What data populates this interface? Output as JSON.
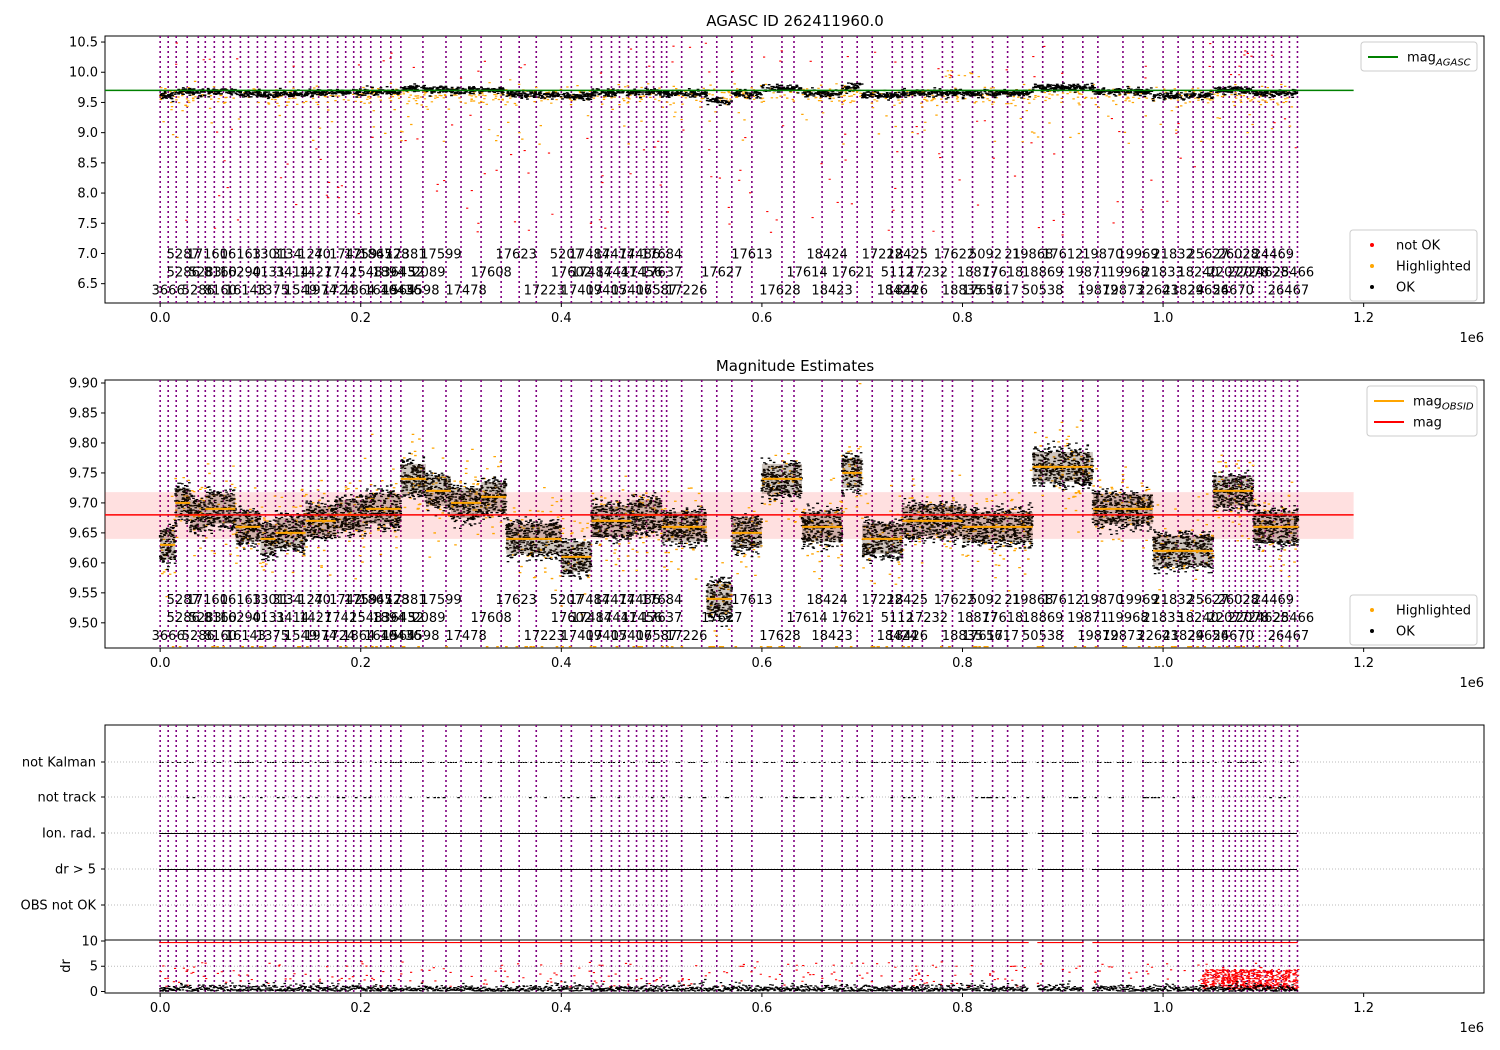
{
  "chart_data": [
    {
      "type": "scatter",
      "title": "AGASC ID 262411960.0",
      "xlim": [
        -55000,
        1320000
      ],
      "ylim": [
        6.18,
        10.6
      ],
      "x_ticks": [
        0,
        200000,
        400000,
        600000,
        800000,
        1000000,
        1200000
      ],
      "x_tick_labels": [
        "0.0",
        "0.2",
        "0.4",
        "0.6",
        "0.8",
        "1.0",
        "1.2"
      ],
      "x_offset_label": "1e6",
      "y_ticks": [
        6.5,
        7.0,
        7.5,
        8.0,
        8.5,
        9.0,
        9.5,
        10.0,
        10.5
      ],
      "y_tick_labels": [
        "6.5",
        "7.0",
        "7.5",
        "8.0",
        "8.5",
        "9.0",
        "9.5",
        "10.0",
        "10.5"
      ],
      "grid": false,
      "hlines": [
        {
          "name": "mag_AGASC",
          "value": 9.7,
          "color": "#008000",
          "x_range": [
            -55000,
            1190000
          ]
        }
      ],
      "legend_top": {
        "placement": "top-right",
        "entries": [
          {
            "label": "mag",
            "sub": "AGASC",
            "color": "#008000",
            "kind": "line"
          }
        ]
      },
      "legend_bottom": {
        "placement": "bottom-right",
        "entries": [
          {
            "label": "not OK",
            "color": "#ff0000",
            "kind": "dot"
          },
          {
            "label": "Highlighted",
            "color": "#ffa500",
            "kind": "dot"
          },
          {
            "label": "OK",
            "color": "#000000",
            "kind": "dot"
          }
        ]
      },
      "obsid_label_rows_y": [
        7.0,
        6.7,
        6.4
      ],
      "series": [
        {
          "name": "OK",
          "color": "#000000",
          "level": 9.68,
          "spread": 0.05
        },
        {
          "name": "Highlighted",
          "color": "#ffa500",
          "level": 9.6,
          "spread": 0.3
        },
        {
          "name": "not OK",
          "color": "#ff0000",
          "level": 9.4,
          "spread": 0.9
        }
      ]
    },
    {
      "type": "scatter",
      "title": "Magnitude Estimates",
      "xlim": [
        -55000,
        1320000
      ],
      "ylim": [
        9.458,
        9.905
      ],
      "x_ticks": [
        0,
        200000,
        400000,
        600000,
        800000,
        1000000,
        1200000
      ],
      "x_tick_labels": [
        "0.0",
        "0.2",
        "0.4",
        "0.6",
        "0.8",
        "1.0",
        "1.2"
      ],
      "x_offset_label": "1e6",
      "y_ticks": [
        9.5,
        9.55,
        9.6,
        9.65,
        9.7,
        9.75,
        9.8,
        9.85,
        9.9
      ],
      "y_tick_labels": [
        "9.50",
        "9.55",
        "9.60",
        "9.65",
        "9.70",
        "9.75",
        "9.80",
        "9.85",
        "9.90"
      ],
      "grid": false,
      "mag": {
        "value": 9.68,
        "band": [
          9.64,
          9.718
        ],
        "color": "#ff0000",
        "x_range": [
          -55000,
          1190000
        ]
      },
      "legend_top": {
        "placement": "top-right",
        "entries": [
          {
            "label": "mag",
            "sub": "OBSID",
            "color": "#ffa500",
            "kind": "line"
          },
          {
            "label": "mag",
            "sub": "",
            "color": "#ff0000",
            "kind": "line"
          }
        ]
      },
      "legend_bottom": {
        "placement": "bottom-right",
        "entries": [
          {
            "label": "Highlighted",
            "color": "#ffa500",
            "kind": "dot"
          },
          {
            "label": "OK",
            "color": "#000000",
            "kind": "dot"
          }
        ]
      },
      "obsid_label_rows_y": [
        9.54,
        9.51,
        9.48
      ],
      "mag_obsid_segments": [
        {
          "x0": 0,
          "x1": 15000,
          "value": 9.63
        },
        {
          "x0": 15000,
          "x1": 30000,
          "value": 9.7
        },
        {
          "x0": 30000,
          "x1": 45000,
          "value": 9.68
        },
        {
          "x0": 45000,
          "x1": 75000,
          "value": 9.69
        },
        {
          "x0": 75000,
          "x1": 100000,
          "value": 9.66
        },
        {
          "x0": 100000,
          "x1": 115000,
          "value": 9.64
        },
        {
          "x0": 115000,
          "x1": 145000,
          "value": 9.65
        },
        {
          "x0": 145000,
          "x1": 175000,
          "value": 9.67
        },
        {
          "x0": 175000,
          "x1": 205000,
          "value": 9.68
        },
        {
          "x0": 205000,
          "x1": 240000,
          "value": 9.69
        },
        {
          "x0": 240000,
          "x1": 265000,
          "value": 9.74
        },
        {
          "x0": 265000,
          "x1": 290000,
          "value": 9.72
        },
        {
          "x0": 290000,
          "x1": 320000,
          "value": 9.7
        },
        {
          "x0": 320000,
          "x1": 345000,
          "value": 9.71
        },
        {
          "x0": 345000,
          "x1": 400000,
          "value": 9.64
        },
        {
          "x0": 400000,
          "x1": 430000,
          "value": 9.61
        },
        {
          "x0": 430000,
          "x1": 470000,
          "value": 9.67
        },
        {
          "x0": 470000,
          "x1": 500000,
          "value": 9.68
        },
        {
          "x0": 500000,
          "x1": 545000,
          "value": 9.66
        },
        {
          "x0": 545000,
          "x1": 570000,
          "value": 9.54
        },
        {
          "x0": 570000,
          "x1": 600000,
          "value": 9.65
        },
        {
          "x0": 600000,
          "x1": 640000,
          "value": 9.74
        },
        {
          "x0": 640000,
          "x1": 680000,
          "value": 9.66
        },
        {
          "x0": 680000,
          "x1": 700000,
          "value": 9.75
        },
        {
          "x0": 700000,
          "x1": 740000,
          "value": 9.64
        },
        {
          "x0": 740000,
          "x1": 800000,
          "value": 9.67
        },
        {
          "x0": 800000,
          "x1": 870000,
          "value": 9.66
        },
        {
          "x0": 870000,
          "x1": 930000,
          "value": 9.76
        },
        {
          "x0": 930000,
          "x1": 990000,
          "value": 9.69
        },
        {
          "x0": 990000,
          "x1": 1050000,
          "value": 9.62
        },
        {
          "x0": 1050000,
          "x1": 1090000,
          "value": 9.72
        },
        {
          "x0": 1090000,
          "x1": 1135000,
          "value": 9.66
        }
      ],
      "series": [
        {
          "name": "OK",
          "color": "#000000"
        },
        {
          "name": "Highlighted",
          "color": "#ffa500"
        }
      ]
    },
    {
      "type": "scatter",
      "xlim": [
        -55000,
        1320000
      ],
      "x_ticks": [
        0,
        200000,
        400000,
        600000,
        800000,
        1000000,
        1200000
      ],
      "x_tick_labels": [
        "0.0",
        "0.2",
        "0.4",
        "0.6",
        "0.8",
        "1.0",
        "1.2"
      ],
      "x_offset_label": "1e6",
      "flag_rows": [
        "not Kalman",
        "not track",
        "Ion. rad.",
        "dr > 5",
        "OBS not OK"
      ],
      "dr_ylabel": "dr",
      "dr_ylim": [
        -0.3,
        10
      ],
      "dr_ticks": [
        0,
        5,
        10
      ],
      "dr_tick_labels": [
        "0",
        "5",
        "10"
      ],
      "gaps": [
        [
          865000,
          875000
        ],
        [
          920000,
          930000
        ]
      ],
      "series": [
        {
          "name": "dr OK",
          "color": "#000000"
        },
        {
          "name": "dr not OK",
          "color": "#ff0000"
        }
      ]
    }
  ],
  "obsids": {
    "boundaries": [
      0,
      8000,
      16000,
      27000,
      38000,
      45000,
      54000,
      63000,
      70000,
      80000,
      88000,
      97000,
      105000,
      115000,
      125000,
      133000,
      142000,
      150000,
      158000,
      167000,
      177000,
      185000,
      193000,
      200000,
      210000,
      220000,
      230000,
      240000,
      262000,
      285000,
      300000,
      320000,
      340000,
      358000,
      375000,
      400000,
      410000,
      430000,
      440000,
      450000,
      458000,
      467000,
      475000,
      485000,
      492000,
      500000,
      505000,
      520000,
      540000,
      555000,
      570000,
      590000,
      620000,
      632000,
      660000,
      680000,
      695000,
      710000,
      730000,
      740000,
      750000,
      760000,
      780000,
      790000,
      810000,
      830000,
      845000,
      860000,
      880000,
      900000,
      920000,
      935000,
      960000,
      980000,
      1000000,
      1015000,
      1030000,
      1040000,
      1050000,
      1060000,
      1066000,
      1072000,
      1078000,
      1084000,
      1090000,
      1096000,
      1102000,
      1110000,
      1118000,
      1126000,
      1134000
    ],
    "labels": [
      {
        "text": "5287",
        "x": 23000,
        "row": 0
      },
      {
        "text": "5286",
        "x": 23000,
        "row": 1
      },
      {
        "text": "3666",
        "x": 8000,
        "row": 2
      },
      {
        "text": "17160",
        "x": 47000,
        "row": 0
      },
      {
        "text": "5283",
        "x": 45000,
        "row": 1
      },
      {
        "text": "5286",
        "x": 38000,
        "row": 2
      },
      {
        "text": "16163",
        "x": 80000,
        "row": 0
      },
      {
        "text": "8160",
        "x": 60000,
        "row": 1
      },
      {
        "text": "8160",
        "x": 60000,
        "row": 2
      },
      {
        "text": "1301",
        "x": 108000,
        "row": 0
      },
      {
        "text": "16290",
        "x": 80000,
        "row": 1
      },
      {
        "text": "16143",
        "x": 85000,
        "row": 2
      },
      {
        "text": "31",
        "x": 120000,
        "row": 0
      },
      {
        "text": "4131",
        "x": 108000,
        "row": 1
      },
      {
        "text": "1375",
        "x": 112000,
        "row": 2
      },
      {
        "text": "34",
        "x": 133000,
        "row": 0
      },
      {
        "text": "3414",
        "x": 132000,
        "row": 1
      },
      {
        "text": "1549",
        "x": 140000,
        "row": 2
      },
      {
        "text": "127",
        "x": 150000,
        "row": 0
      },
      {
        "text": "1427",
        "x": 155000,
        "row": 1
      },
      {
        "text": "1974",
        "x": 160000,
        "row": 2
      },
      {
        "text": "40",
        "x": 162000,
        "row": 0
      },
      {
        "text": "1742",
        "x": 180000,
        "row": 1
      },
      {
        "text": "1724",
        "x": 178000,
        "row": 2
      },
      {
        "text": "1742",
        "x": 185000,
        "row": 0
      },
      {
        "text": "1548",
        "x": 205000,
        "row": 1
      },
      {
        "text": "1864",
        "x": 198000,
        "row": 2
      },
      {
        "text": "1759",
        "x": 200000,
        "row": 0
      },
      {
        "text": "1894",
        "x": 228000,
        "row": 1
      },
      {
        "text": "1649",
        "x": 220000,
        "row": 2
      },
      {
        "text": "1867",
        "x": 215000,
        "row": 0
      },
      {
        "text": "3643",
        "x": 238000,
        "row": 1
      },
      {
        "text": "1564",
        "x": 238000,
        "row": 2
      },
      {
        "text": "4528",
        "x": 232000,
        "row": 0
      },
      {
        "text": "52",
        "x": 255000,
        "row": 1
      },
      {
        "text": "16436",
        "x": 240000,
        "row": 2
      },
      {
        "text": "17381",
        "x": 245000,
        "row": 0
      },
      {
        "text": "2089",
        "x": 268000,
        "row": 1
      },
      {
        "text": "5598",
        "x": 262000,
        "row": 2
      },
      {
        "text": "17599",
        "x": 280000,
        "row": 0
      },
      {
        "text": "17608",
        "x": 330000,
        "row": 1
      },
      {
        "text": "17478",
        "x": 305000,
        "row": 2
      },
      {
        "text": "17623",
        "x": 355000,
        "row": 0
      },
      {
        "text": "17602",
        "x": 410000,
        "row": 1
      },
      {
        "text": "17223",
        "x": 383000,
        "row": 2
      },
      {
        "text": "5207",
        "x": 405000,
        "row": 0
      },
      {
        "text": "17484",
        "x": 430000,
        "row": 1
      },
      {
        "text": "17409",
        "x": 420000,
        "row": 2
      },
      {
        "text": "17484",
        "x": 428000,
        "row": 0
      },
      {
        "text": "17441",
        "x": 455000,
        "row": 1
      },
      {
        "text": "17405",
        "x": 445000,
        "row": 2
      },
      {
        "text": "17474",
        "x": 453000,
        "row": 0
      },
      {
        "text": "17456",
        "x": 480000,
        "row": 1
      },
      {
        "text": "17406",
        "x": 470000,
        "row": 2
      },
      {
        "text": "17486",
        "x": 478000,
        "row": 0
      },
      {
        "text": "17637",
        "x": 500000,
        "row": 1
      },
      {
        "text": "17587",
        "x": 495000,
        "row": 2
      },
      {
        "text": "17684",
        "x": 500000,
        "row": 0
      },
      {
        "text": "17627",
        "x": 560000,
        "row": 1
      },
      {
        "text": "17226",
        "x": 525000,
        "row": 2
      },
      {
        "text": "17613",
        "x": 590000,
        "row": 0
      },
      {
        "text": "17614",
        "x": 645000,
        "row": 1
      },
      {
        "text": "17628",
        "x": 618000,
        "row": 2
      },
      {
        "text": "18424",
        "x": 665000,
        "row": 0
      },
      {
        "text": "17621",
        "x": 690000,
        "row": 1
      },
      {
        "text": "18423",
        "x": 670000,
        "row": 2
      },
      {
        "text": "17222",
        "x": 720000,
        "row": 0
      },
      {
        "text": "5112",
        "x": 735000,
        "row": 1
      },
      {
        "text": "18424",
        "x": 735000,
        "row": 2
      },
      {
        "text": "18425",
        "x": 745000,
        "row": 0
      },
      {
        "text": "17232",
        "x": 765000,
        "row": 1
      },
      {
        "text": "18426",
        "x": 745000,
        "row": 2
      },
      {
        "text": "17622",
        "x": 792000,
        "row": 0
      },
      {
        "text": "18877",
        "x": 815000,
        "row": 1
      },
      {
        "text": "18835",
        "x": 800000,
        "row": 2
      },
      {
        "text": "5092",
        "x": 823000,
        "row": 0
      },
      {
        "text": "17618",
        "x": 840000,
        "row": 1
      },
      {
        "text": "17617",
        "x": 820000,
        "row": 2
      },
      {
        "text": "21",
        "x": 850000,
        "row": 0
      },
      {
        "text": "18869",
        "x": 880000,
        "row": 1
      },
      {
        "text": "5617",
        "x": 840000,
        "row": 2
      },
      {
        "text": "19868",
        "x": 870000,
        "row": 0
      },
      {
        "text": "19871",
        "x": 925000,
        "row": 1
      },
      {
        "text": "50538",
        "x": 880000,
        "row": 2
      },
      {
        "text": "17612",
        "x": 900000,
        "row": 0
      },
      {
        "text": "19968",
        "x": 965000,
        "row": 1
      },
      {
        "text": "19872",
        "x": 935000,
        "row": 2
      },
      {
        "text": "19870",
        "x": 940000,
        "row": 0
      },
      {
        "text": "21833",
        "x": 1000000,
        "row": 1
      },
      {
        "text": "19873",
        "x": 960000,
        "row": 2
      },
      {
        "text": "19969",
        "x": 975000,
        "row": 0
      },
      {
        "text": "18240",
        "x": 1035000,
        "row": 1
      },
      {
        "text": "22643",
        "x": 995000,
        "row": 2
      },
      {
        "text": "21832",
        "x": 1010000,
        "row": 0
      },
      {
        "text": "22077",
        "x": 1065000,
        "row": 1
      },
      {
        "text": "21829",
        "x": 1020000,
        "row": 2
      },
      {
        "text": "25627",
        "x": 1045000,
        "row": 0
      },
      {
        "text": "22078",
        "x": 1085000,
        "row": 1
      },
      {
        "text": "24656",
        "x": 1045000,
        "row": 2
      },
      {
        "text": "26028",
        "x": 1075000,
        "row": 0
      },
      {
        "text": "24628",
        "x": 1105000,
        "row": 1
      },
      {
        "text": "24670",
        "x": 1070000,
        "row": 2
      },
      {
        "text": "24469",
        "x": 1110000,
        "row": 0
      },
      {
        "text": "25466",
        "x": 1130000,
        "row": 1
      },
      {
        "text": "26467",
        "x": 1125000,
        "row": 2
      }
    ]
  }
}
